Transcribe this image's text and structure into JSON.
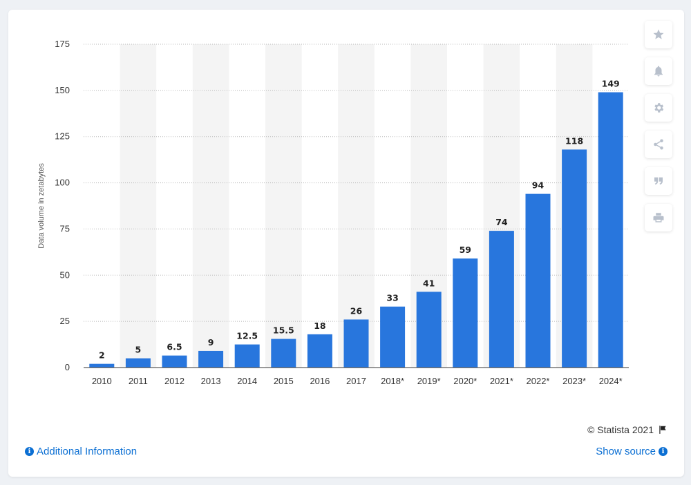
{
  "chart_data": {
    "type": "bar",
    "categories": [
      "2010",
      "2011",
      "2012",
      "2013",
      "2014",
      "2015",
      "2016",
      "2017",
      "2018*",
      "2019*",
      "2020*",
      "2021*",
      "2022*",
      "2023*",
      "2024*"
    ],
    "values": [
      2,
      5,
      6.5,
      9,
      12.5,
      15.5,
      18,
      26,
      33,
      41,
      59,
      74,
      94,
      118,
      149
    ],
    "value_labels": [
      "2",
      "5",
      "6.5",
      "9",
      "12.5",
      "15.5",
      "18",
      "26",
      "33",
      "41",
      "59",
      "74",
      "94",
      "118",
      "149"
    ],
    "ylabel": "Data volume in zetabytes",
    "xlabel": "",
    "ylim": [
      0,
      175
    ],
    "yticks": [
      0,
      25,
      50,
      75,
      100,
      125,
      150,
      175
    ],
    "grid": true,
    "bar_color": "#2876dd",
    "band_color": "#f4f4f4"
  },
  "toolbar": {
    "buttons": [
      {
        "name": "star-icon",
        "label": "favorite"
      },
      {
        "name": "bell-icon",
        "label": "notification"
      },
      {
        "name": "gear-icon",
        "label": "settings"
      },
      {
        "name": "share-icon",
        "label": "share"
      },
      {
        "name": "quote-icon",
        "label": "cite"
      },
      {
        "name": "print-icon",
        "label": "print"
      }
    ]
  },
  "footer": {
    "copyright": "© Statista 2021",
    "additional_info": "Additional Information",
    "show_source": "Show source",
    "link_color": "#0b6fd3"
  }
}
